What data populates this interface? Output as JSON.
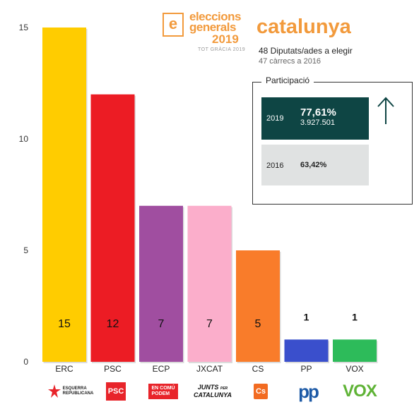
{
  "brand": {
    "mark": "e",
    "line1": "eleccions",
    "line2": "generals",
    "year": "2019",
    "tagline": "TOT GRÀCIA 2019",
    "region": "catalunya"
  },
  "seats": {
    "main": "48 Diputats/ades a elegir",
    "sub": "47 càrrecs a 2016"
  },
  "participation": {
    "title": "Participació",
    "rows": [
      {
        "year": "2019",
        "pct": "77,61%",
        "votes": "3.927.501"
      },
      {
        "year": "2016",
        "pct": "63,42%"
      }
    ],
    "trend_icon": "arrow-up-icon"
  },
  "logos": {
    "erc": [
      "ESQUERRA",
      "REPUBLICANA"
    ],
    "psc": "PSC",
    "ecp": [
      "EN COMÚ",
      "PODEM"
    ],
    "jxcat": [
      "JUNTS",
      "PER",
      "CATALUNYA"
    ],
    "cs": "Cs",
    "pp": "pp",
    "vox": "VOX"
  },
  "chart_data": {
    "type": "bar",
    "categories": [
      "ERC",
      "PSC",
      "ECP",
      "JXCAT",
      "CS",
      "PP",
      "VOX"
    ],
    "values": [
      15,
      12,
      7,
      7,
      5,
      1,
      1
    ],
    "value_labels": [
      "15",
      "12",
      "7",
      "7",
      "5",
      "1",
      "1"
    ],
    "colors": [
      "#ffcc00",
      "#ec1c24",
      "#a04ea0",
      "#fbaecb",
      "#f97c2a",
      "#3a4fcc",
      "#2dbb5a"
    ],
    "ylim": [
      0,
      15
    ],
    "yticks": [
      0,
      5,
      10,
      15
    ],
    "grid": false
  }
}
